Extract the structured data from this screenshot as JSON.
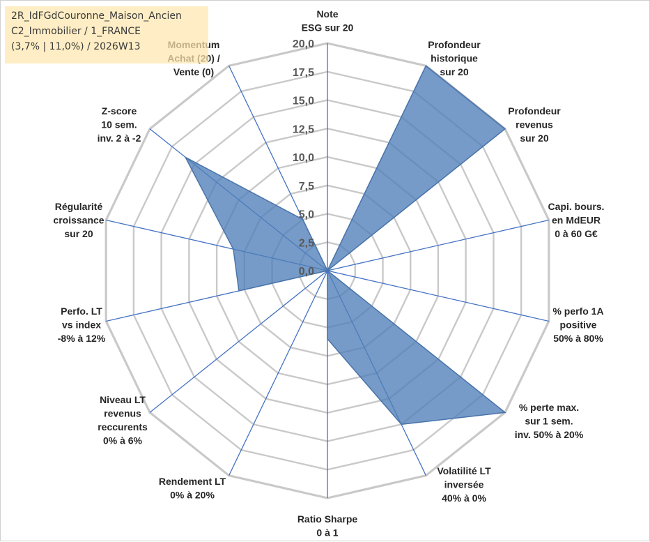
{
  "chart_data": {
    "type": "radar",
    "rmax": 20,
    "ticks": [
      "0,0",
      "2,5",
      "5,0",
      "7,5",
      "10,0",
      "12,5",
      "15,0",
      "17,5",
      "20,0"
    ],
    "axes": [
      {
        "lines": [
          "Note",
          "ESG sur 20"
        ],
        "value": 0
      },
      {
        "lines": [
          "Profondeur",
          "historique",
          "sur 20"
        ],
        "value": 20
      },
      {
        "lines": [
          "Profondeur",
          "revenus",
          "sur 20"
        ],
        "value": 20
      },
      {
        "lines": [
          "Capi. bours.",
          "en MdEUR",
          "0 à 60 G€"
        ],
        "value": 0
      },
      {
        "lines": [
          "% perfo 1A",
          "positive",
          "50% à 80%"
        ],
        "value": 0
      },
      {
        "lines": [
          "% perte max.",
          "sur 1 sem.",
          "inv. 50% à 20%"
        ],
        "value": 20
      },
      {
        "lines": [
          "Volatilité LT",
          "inversée",
          "40% à 0%"
        ],
        "value": 15
      },
      {
        "lines": [
          "Ratio Sharpe",
          "0 à 1"
        ],
        "value": 6
      },
      {
        "lines": [
          "Rendement LT",
          "0% à 20%"
        ],
        "value": 0
      },
      {
        "lines": [
          "Niveau LT",
          "revenus",
          "reccurents",
          "0% à 6%"
        ],
        "value": 0
      },
      {
        "lines": [
          "Perfo. LT",
          "vs index",
          "-8% à 12%"
        ],
        "value": 8
      },
      {
        "lines": [
          "Régularité",
          "croissance",
          "sur 20"
        ],
        "value": 8.5
      },
      {
        "lines": [
          "Z-score",
          "10 sem.",
          "inv. 2 à -2"
        ],
        "value": 16
      },
      {
        "lines": [
          "Momentum",
          "Achat (20) /",
          "Vente (0)"
        ],
        "value": 5
      }
    ],
    "series": [
      {
        "values": [
          0,
          20,
          20,
          0,
          0,
          20,
          15,
          6,
          0,
          0,
          8,
          8.5,
          16,
          5
        ]
      }
    ],
    "grid": true
  },
  "colors": {
    "fill": "#4f7fb8",
    "stroke": "#4a74aa",
    "grid": "#c9c9c9",
    "axis": "#4472c4",
    "info_bg": "#ffe8af"
  },
  "info_box": {
    "line1": "2R_IdFGdCouronne_Maison_Ancien",
    "line2": "C2_Immobilier / 1_FRANCE",
    "line3": "(3,7% | 11,0%) / 2026W13"
  }
}
